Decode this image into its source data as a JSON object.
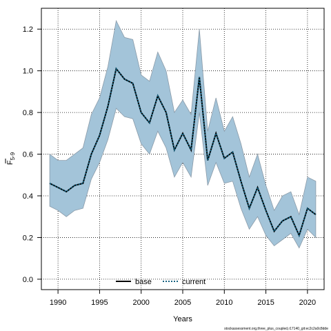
{
  "chart_data": {
    "type": "line",
    "xlabel": "Years",
    "ylabel_main": "F",
    "ylabel_sub": "5-9",
    "xlim": [
      1988,
      2022
    ],
    "ylim": [
      -0.05,
      1.3
    ],
    "xticks": [
      1990,
      1995,
      2000,
      2005,
      2010,
      2015,
      2020
    ],
    "yticks": [
      0.0,
      0.2,
      0.4,
      0.6,
      0.8,
      1.0,
      1.2
    ],
    "grid": true,
    "legend_position": "bottom",
    "colors": {
      "band": "#a3c4d9",
      "band_edge": "#8a9aa8",
      "base": "#000000",
      "current": "#14607f"
    },
    "x": [
      1989,
      1990,
      1991,
      1992,
      1993,
      1994,
      1995,
      1996,
      1997,
      1998,
      1999,
      2000,
      2001,
      2002,
      2003,
      2004,
      2005,
      2006,
      2007,
      2008,
      2009,
      2010,
      2011,
      2012,
      2013,
      2014,
      2015,
      2016,
      2017,
      2018,
      2019,
      2020,
      2021
    ],
    "band_upper": [
      0.6,
      0.57,
      0.57,
      0.6,
      0.63,
      0.79,
      0.87,
      1.02,
      1.24,
      1.16,
      1.15,
      0.98,
      0.95,
      1.09,
      1.0,
      0.8,
      0.86,
      0.79,
      1.2,
      0.71,
      0.87,
      0.71,
      0.78,
      0.65,
      0.49,
      0.6,
      0.45,
      0.33,
      0.4,
      0.42,
      0.31,
      0.49,
      0.47
    ],
    "band_lower": [
      0.35,
      0.33,
      0.3,
      0.33,
      0.34,
      0.48,
      0.56,
      0.67,
      0.82,
      0.78,
      0.77,
      0.65,
      0.6,
      0.71,
      0.63,
      0.49,
      0.56,
      0.49,
      0.8,
      0.45,
      0.56,
      0.46,
      0.47,
      0.34,
      0.24,
      0.3,
      0.21,
      0.16,
      0.19,
      0.22,
      0.15,
      0.24,
      0.2
    ],
    "series": [
      {
        "name": "base",
        "style": "solid",
        "values": [
          0.46,
          0.44,
          0.42,
          0.45,
          0.46,
          0.6,
          0.69,
          0.83,
          1.01,
          0.96,
          0.94,
          0.8,
          0.75,
          0.88,
          0.8,
          0.62,
          0.7,
          0.62,
          0.97,
          0.57,
          0.7,
          0.58,
          0.61,
          0.47,
          0.34,
          0.44,
          0.33,
          0.23,
          0.28,
          0.3,
          0.21,
          0.34,
          0.31
        ]
      },
      {
        "name": "current",
        "style": "dotted",
        "values": [
          0.46,
          0.44,
          0.42,
          0.45,
          0.46,
          0.6,
          0.69,
          0.83,
          1.01,
          0.96,
          0.94,
          0.8,
          0.75,
          0.88,
          0.8,
          0.62,
          0.7,
          0.62,
          0.97,
          0.57,
          0.7,
          0.58,
          0.61,
          0.47,
          0.34,
          0.44,
          0.33,
          0.23,
          0.28,
          0.3,
          0.21,
          0.34,
          0.31
        ]
      }
    ],
    "footer": "stockassessment.org,three_plus_coupled,r17140_git:ec2c2a0c8dde"
  }
}
